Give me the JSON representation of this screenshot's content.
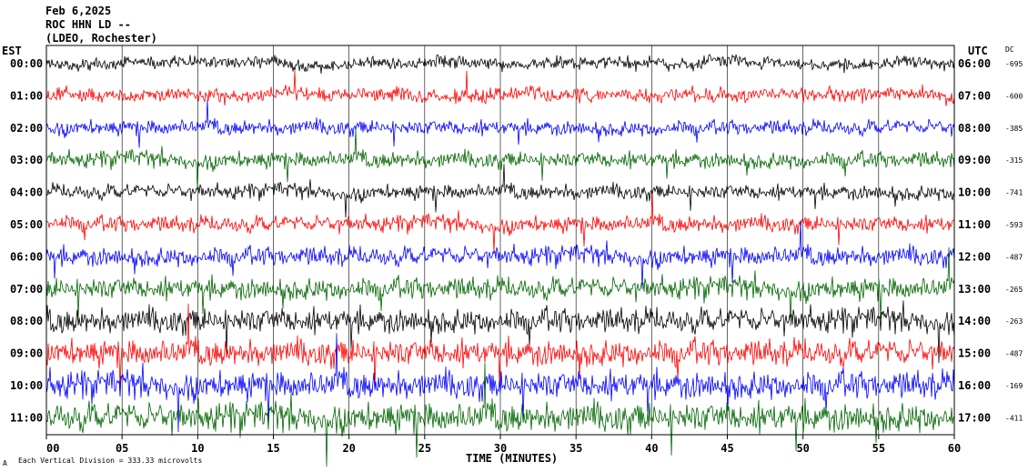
{
  "header": {
    "date": "Feb 6,2025",
    "station": "ROC HHN LD --",
    "network": "(LDEO, Rochester)"
  },
  "left_axis_label": "EST",
  "right_axis_label": "UTC",
  "dc_label": "DC",
  "xlabel": "TIME (MINUTES)",
  "footer": {
    "mark": "A",
    "scale": "Each Vertical Division =  333.33 microvolts"
  },
  "colors": {
    "cycle": [
      "#000000",
      "#ff0000",
      "#0000ff",
      "#006400"
    ],
    "background": "#ffffff",
    "grid": "#000000"
  },
  "chart_data": {
    "type": "line",
    "title": "",
    "x_ticks": [
      "00",
      "05",
      "10",
      "15",
      "20",
      "25",
      "30",
      "35",
      "40",
      "45",
      "50",
      "55",
      "60"
    ],
    "xlim": [
      0,
      60
    ],
    "grid": "vertical lines every 5 minutes",
    "series": [
      {
        "est": "00:00",
        "utc": "06:00",
        "dc": "-695",
        "color": "#000000",
        "noise": 0.8
      },
      {
        "est": "01:00",
        "utc": "07:00",
        "dc": "-600",
        "color": "#ff0000",
        "noise": 0.9
      },
      {
        "est": "02:00",
        "utc": "08:00",
        "dc": "-385",
        "color": "#0000ff",
        "noise": 1.0
      },
      {
        "est": "03:00",
        "utc": "09:00",
        "dc": "-315",
        "color": "#006400",
        "noise": 1.1
      },
      {
        "est": "04:00",
        "utc": "10:00",
        "dc": "-741",
        "color": "#000000",
        "noise": 1.0
      },
      {
        "est": "05:00",
        "utc": "11:00",
        "dc": "-593",
        "color": "#ff0000",
        "noise": 1.1
      },
      {
        "est": "06:00",
        "utc": "12:00",
        "dc": "-487",
        "color": "#0000ff",
        "noise": 1.3
      },
      {
        "est": "07:00",
        "utc": "13:00",
        "dc": "-265",
        "color": "#006400",
        "noise": 1.5
      },
      {
        "est": "08:00",
        "utc": "14:00",
        "dc": "-263",
        "color": "#000000",
        "noise": 1.7
      },
      {
        "est": "09:00",
        "utc": "15:00",
        "dc": "-487",
        "color": "#ff0000",
        "noise": 1.8
      },
      {
        "est": "10:00",
        "utc": "16:00",
        "dc": "-169",
        "color": "#0000ff",
        "noise": 1.9
      },
      {
        "est": "11:00",
        "utc": "17:00",
        "dc": "-411",
        "color": "#006400",
        "noise": 2.0
      }
    ]
  }
}
